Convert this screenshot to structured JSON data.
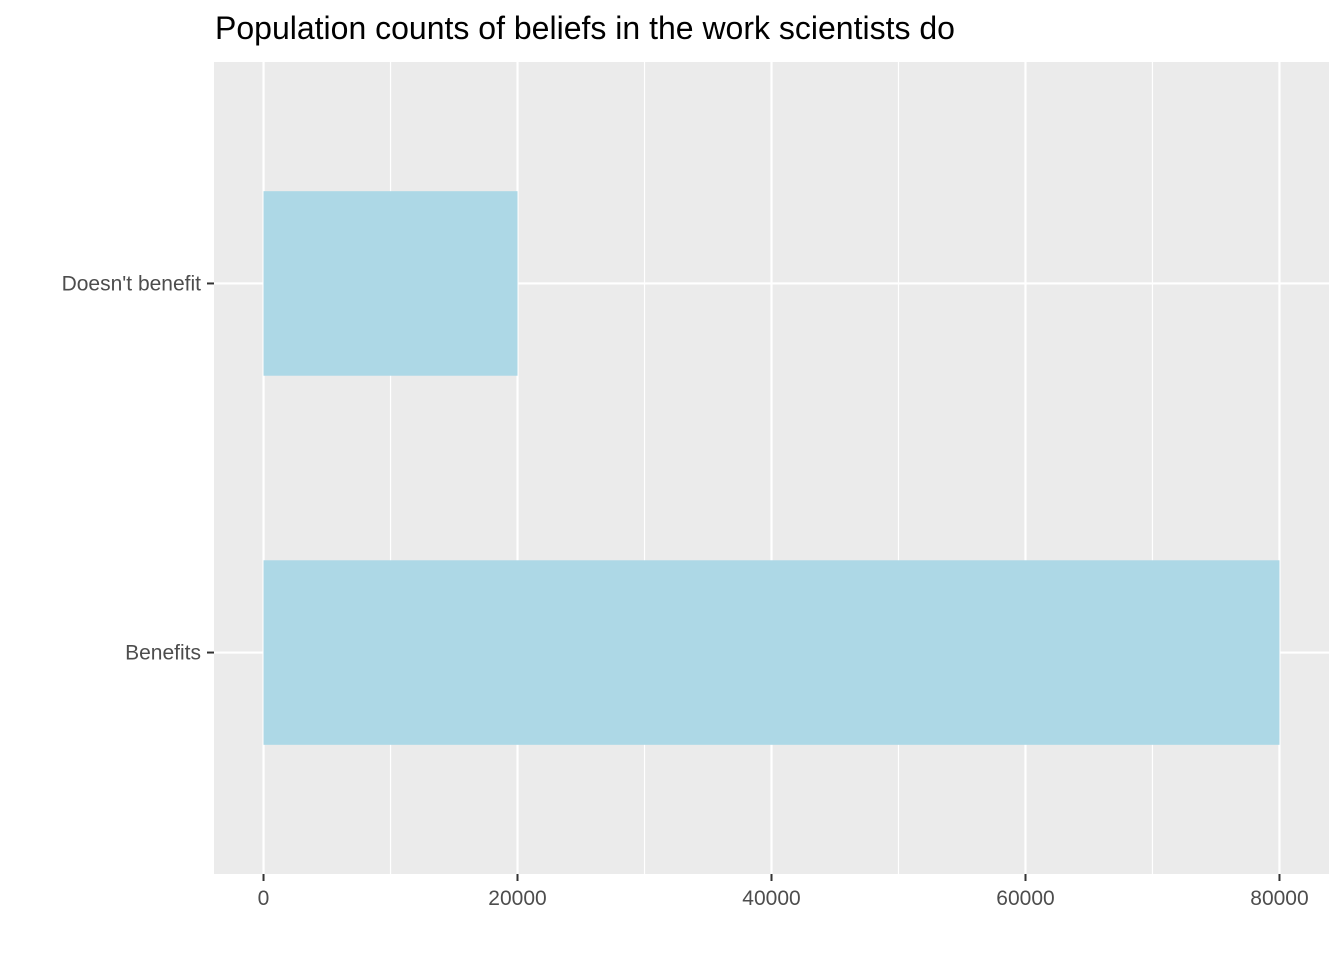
{
  "chart_data": {
    "type": "bar",
    "orientation": "horizontal",
    "title": "Population counts of beliefs in the work scientists do",
    "xlabel": "",
    "ylabel": "",
    "categories": [
      "Doesn't benefit",
      "Benefits"
    ],
    "values": [
      20000,
      80000
    ],
    "xlim": [
      -3900,
      83900
    ],
    "x_ticks": [
      0,
      20000,
      40000,
      60000,
      80000
    ],
    "x_tick_labels": [
      "0",
      "20000",
      "40000",
      "60000",
      "80000"
    ],
    "bar_color": "#add8e6",
    "panel_background": "#ebebeb",
    "grid": true,
    "legend": "none"
  }
}
